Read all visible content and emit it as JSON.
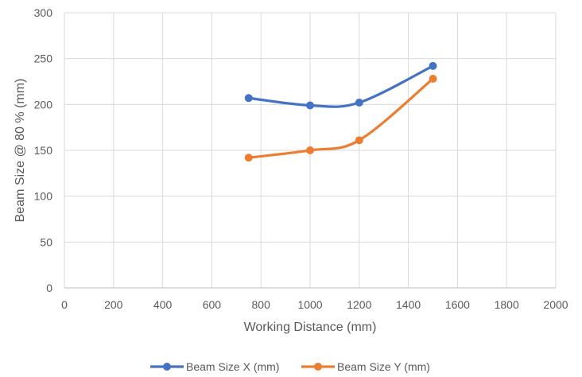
{
  "chart_data": {
    "type": "line",
    "title": "",
    "xlabel": "Working Distance (mm)",
    "ylabel": "Beam Size @ 80 % (mm)",
    "xlim": [
      0,
      2000
    ],
    "ylim": [
      0,
      300
    ],
    "xticks": [
      0,
      200,
      400,
      600,
      800,
      1000,
      1200,
      1400,
      1600,
      1800,
      2000
    ],
    "yticks": [
      0,
      50,
      100,
      150,
      200,
      250,
      300
    ],
    "grid": true,
    "smooth": true,
    "legend_position": "bottom",
    "series": [
      {
        "name": "Beam Size X (mm)",
        "color": "#4472C4",
        "x": [
          750,
          1000,
          1200,
          1500
        ],
        "y": [
          207,
          199,
          202,
          242
        ]
      },
      {
        "name": "Beam Size Y (mm)",
        "color": "#ED7D31",
        "x": [
          750,
          1000,
          1200,
          1500
        ],
        "y": [
          142,
          150,
          161,
          228
        ]
      }
    ]
  }
}
